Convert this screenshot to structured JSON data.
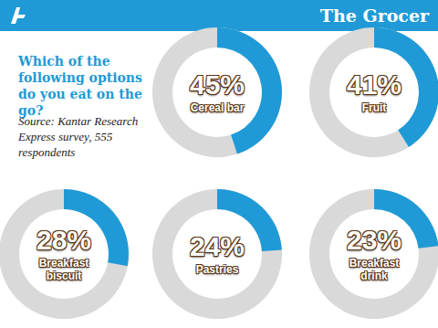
{
  "header": {
    "brand": "The Grocer"
  },
  "chart_data": {
    "type": "donut",
    "title": "Which of the following options do you eat on the go?",
    "subtitle": "Source: Kantar Research Express survey, 555 respondents",
    "categories": [
      "Cereal bar",
      "Fruit",
      "Breakfast biscuit",
      "Pastries",
      "Breakfast drink"
    ],
    "values": [
      45,
      41,
      28,
      24,
      23
    ],
    "value_labels": [
      "45%",
      "41%",
      "28%",
      "24%",
      "23%"
    ],
    "color": "#1f9ad6",
    "data_labels": true
  }
}
